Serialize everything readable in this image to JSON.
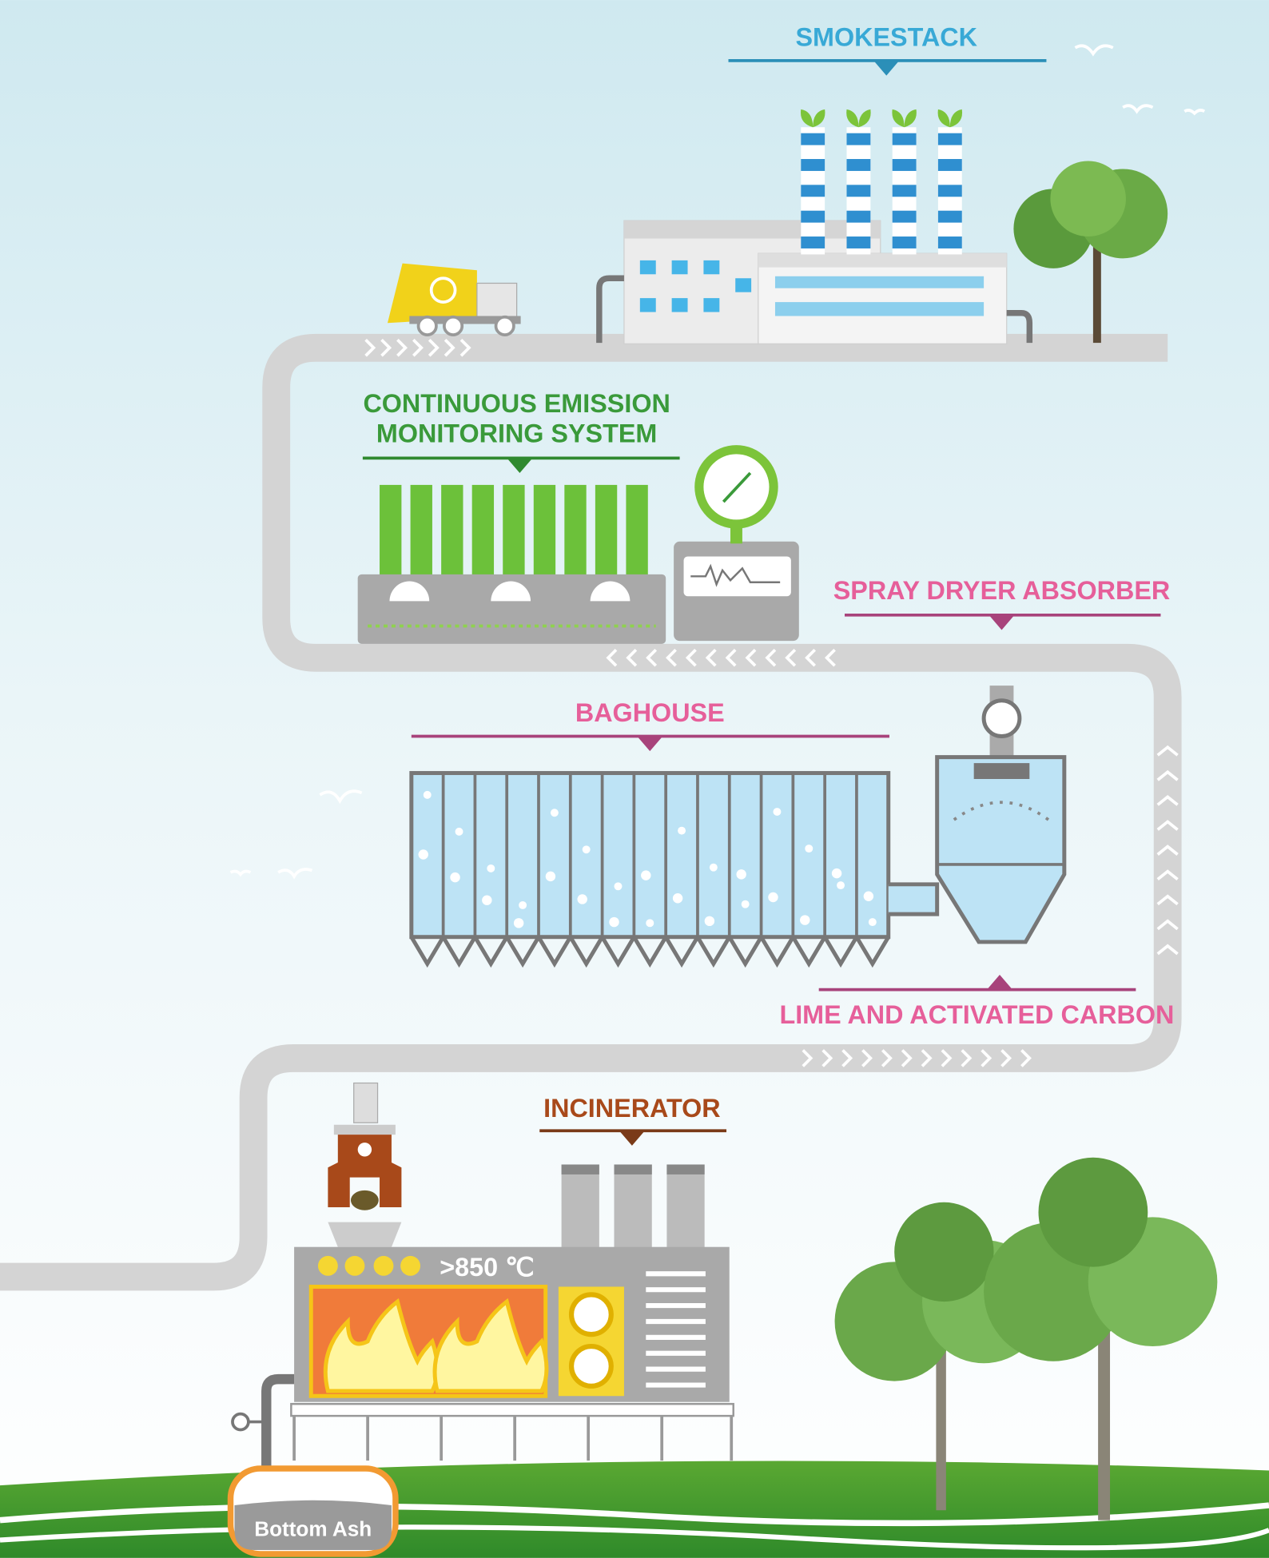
{
  "labels": {
    "smokestack": "SMOKESTACK",
    "cems": [
      "CONTINUOUS EMISSION",
      "MONITORING SYSTEM"
    ],
    "spray_dryer": "SPRAY DRYER ABSORBER",
    "baghouse": "BAGHOUSE",
    "lime": "LIME AND ACTIVATED CARBON",
    "incinerator": "INCINERATOR",
    "temperature": ">850 ℃",
    "bottom_ash": "Bottom Ash"
  }
}
